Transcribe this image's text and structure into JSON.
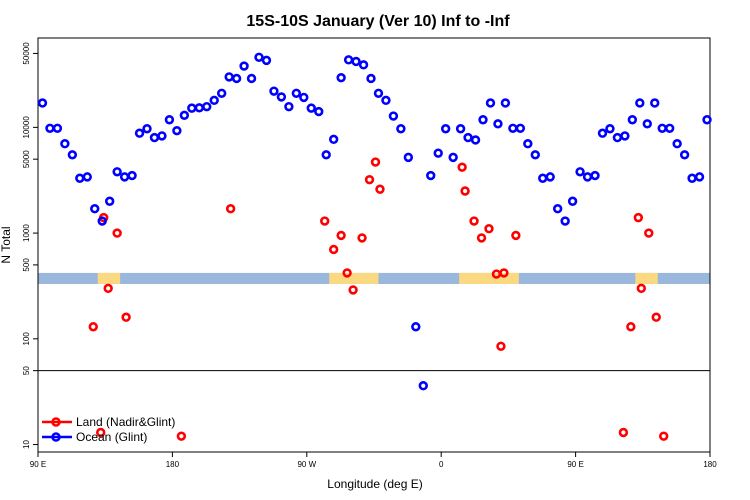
{
  "chart_data": {
    "type": "scatter",
    "title": "15S-10S January (Ver 10)   Inf to -Inf",
    "xlabel": "Longitude (deg E)",
    "ylabel": "N Total",
    "xlim": [
      90,
      540
    ],
    "ylim_log": [
      8.5,
      70000
    ],
    "y_scale": "log",
    "x_ticks": [
      {
        "value": 90,
        "label": "90 E"
      },
      {
        "value": 180,
        "label": "180"
      },
      {
        "value": 270,
        "label": "90 W"
      },
      {
        "value": 360,
        "label": "0"
      },
      {
        "value": 450,
        "label": "90 E"
      },
      {
        "value": 540,
        "label": "180"
      }
    ],
    "y_ticks": [
      {
        "value": 10,
        "label": "10"
      },
      {
        "value": 50,
        "label": "50"
      },
      {
        "value": 100,
        "label": "100"
      },
      {
        "value": 500,
        "label": "500"
      },
      {
        "value": 1000,
        "label": "1000"
      },
      {
        "value": 5000,
        "label": "5000"
      },
      {
        "value": 10000,
        "label": "10000"
      },
      {
        "value": 50000,
        "label": "50000"
      }
    ],
    "reference_line_y": 50,
    "land_mask_band": {
      "y_low": 330,
      "y_high": 420,
      "color": "#9ab8dc",
      "land_color": "#fad982"
    },
    "land_mask_segments": [
      {
        "x_start": 130,
        "x_end": 145
      },
      {
        "x_start": 285,
        "x_end": 318
      },
      {
        "x_start": 372,
        "x_end": 412
      },
      {
        "x_start": 490,
        "x_end": 505
      }
    ],
    "series": [
      {
        "name": "Land (Nadir&Glint)",
        "color": "#ff0000",
        "x": [
          127,
          132,
          134,
          137,
          143,
          149,
          186,
          219,
          282,
          288,
          293,
          297,
          301,
          307,
          312,
          316,
          319,
          374,
          376,
          382,
          387,
          392,
          397,
          400,
          402,
          410,
          482,
          487,
          492,
          494,
          499,
          504,
          509
        ],
        "y": [
          130,
          13,
          1400,
          300,
          1000,
          160,
          12,
          1700,
          1300,
          700,
          950,
          420,
          290,
          900,
          3200,
          4700,
          2600,
          4200,
          2500,
          1300,
          900,
          1100,
          410,
          85,
          420,
          950,
          13,
          130,
          1400,
          300,
          1000,
          160,
          12
        ]
      },
      {
        "name": "Ocean (Glint)",
        "color": "#0000ff",
        "x": [
          93,
          98,
          103,
          108,
          113,
          118,
          123,
          128,
          133,
          138,
          143,
          148,
          153,
          158,
          163,
          168,
          173,
          178,
          183,
          188,
          193,
          198,
          203,
          208,
          213,
          218,
          223,
          228,
          233,
          238,
          243,
          248,
          253,
          258,
          263,
          268,
          273,
          278,
          283,
          288,
          293,
          298,
          303,
          308,
          313,
          318,
          323,
          328,
          333,
          338,
          343,
          348,
          353,
          358,
          363,
          368,
          373,
          378,
          383,
          388,
          393,
          398,
          403,
          408,
          413,
          418,
          423,
          428,
          433,
          438,
          443,
          448,
          453,
          458,
          463,
          468,
          473,
          478,
          483,
          488,
          493,
          498,
          503,
          508,
          513,
          518,
          523,
          528,
          533,
          538
        ],
        "y": [
          17000,
          9800,
          9800,
          7000,
          5500,
          3300,
          3400,
          1700,
          1300,
          2000,
          3800,
          3400,
          3500,
          8800,
          9700,
          8000,
          8300,
          11800,
          9300,
          13000,
          15200,
          15300,
          15700,
          18000,
          21000,
          30000,
          29000,
          38000,
          29000,
          46000,
          43000,
          22000,
          19400,
          15700,
          21000,
          19200,
          15200,
          14100,
          5500,
          7700,
          29500,
          43500,
          42000,
          39000,
          29000,
          21000,
          18000,
          12800,
          9700,
          5200,
          130,
          36,
          3500,
          5700,
          9700,
          5200,
          9700,
          8000,
          7600,
          11800,
          17000,
          10800,
          17000,
          9800,
          9800,
          7000,
          5500,
          3300,
          3400,
          1700,
          1300,
          2000,
          3800,
          3400,
          3500,
          8800,
          9700,
          8000,
          8300,
          11800,
          17000,
          10800,
          17000,
          9800,
          9800,
          7000,
          5500,
          3300,
          3400,
          11800
        ]
      }
    ],
    "legend": {
      "position": "bottom-left",
      "entries": [
        "Land (Nadir&Glint)",
        "Ocean (Glint)"
      ]
    }
  }
}
